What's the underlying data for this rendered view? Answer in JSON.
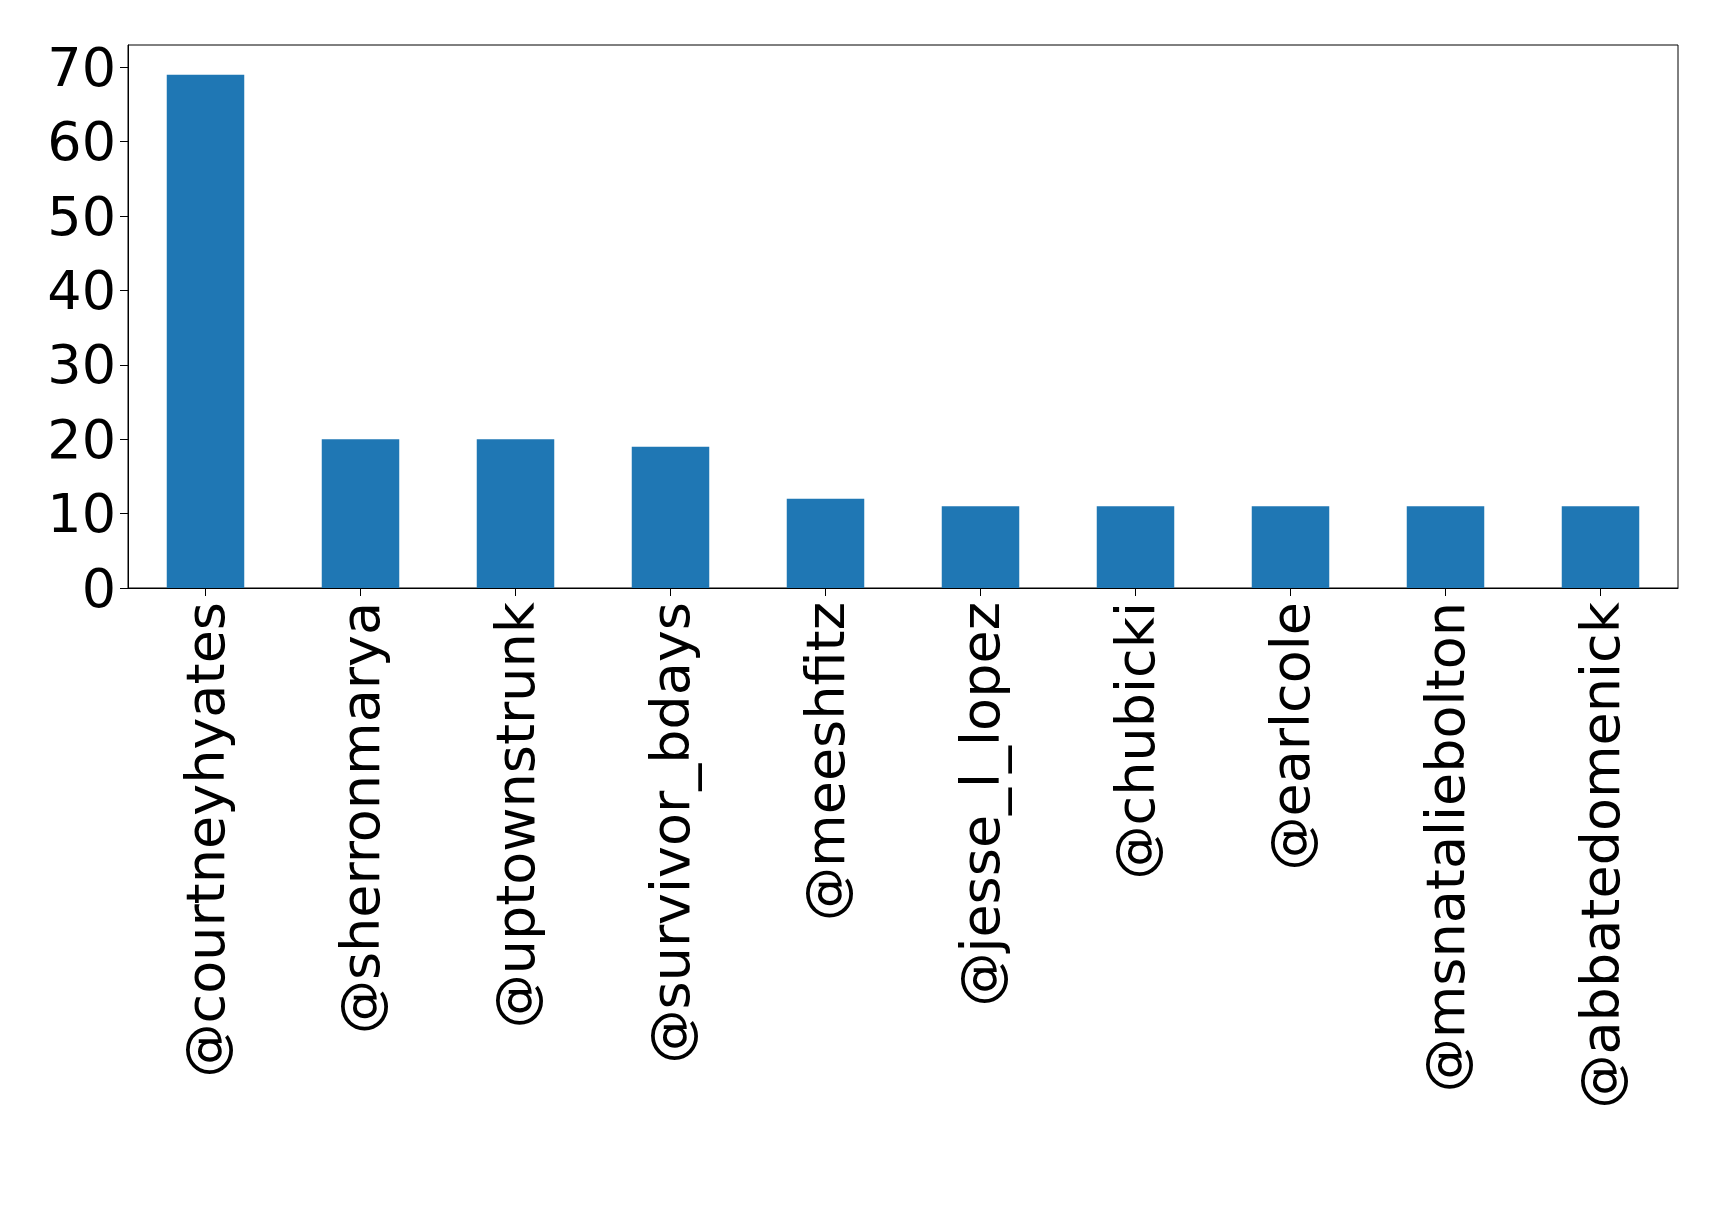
{
  "chart_data": {
    "type": "bar",
    "categories": [
      "@courtneyhyates",
      "@sherronmarya",
      "@uptownstrunk",
      "@survivor_bdays",
      "@meeshfitz",
      "@jesse_l_lopez",
      "@chubicki",
      "@earlcole",
      "@msnataliebolton",
      "@abbatedomenick"
    ],
    "values": [
      69,
      20,
      20,
      19,
      12,
      11,
      11,
      11,
      11,
      11
    ],
    "color": "#1f77b4",
    "ylim": [
      0,
      73
    ],
    "yticks": [
      0,
      10,
      20,
      30,
      40,
      50,
      60,
      70
    ],
    "grid": false
  }
}
